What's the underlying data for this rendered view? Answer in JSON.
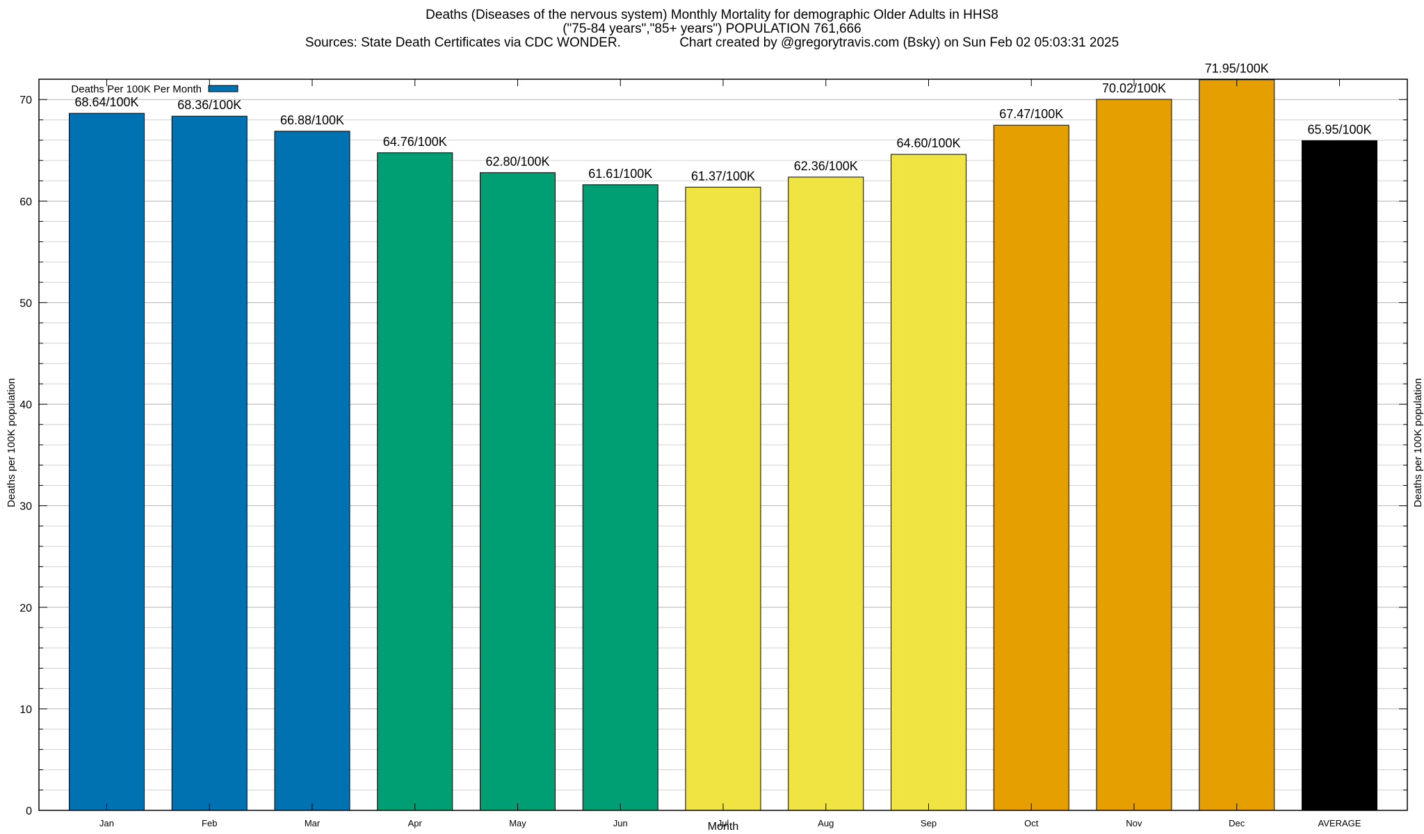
{
  "chart_data": {
    "type": "bar",
    "title_lines": [
      "Deaths (Diseases of the nervous system) Monthly Mortality for demographic Older Adults in HHS8",
      "(\"75-84 years\",\"85+ years\") POPULATION 761,666",
      "Sources: State Death Certificates via CDC WONDER.                Chart created by @gregorytravis.com (Bsky) on Sun Feb 02 05:03:31 2025"
    ],
    "xlabel": "Month",
    "ylabel": "Deaths per 100K population",
    "y2label": "Deaths per 100K population",
    "ylim": [
      0,
      72
    ],
    "yticks": [
      0,
      10,
      20,
      30,
      40,
      50,
      60,
      70
    ],
    "grid": true,
    "legend": {
      "label": "Deaths Per 100K Per Month",
      "color": "#0072b2",
      "placement": "top-left"
    },
    "categories": [
      "Jan",
      "Feb",
      "Mar",
      "Apr",
      "May",
      "Jun",
      "Jul",
      "Aug",
      "Sep",
      "Oct",
      "Nov",
      "Dec",
      "AVERAGE"
    ],
    "values": [
      68.64,
      68.36,
      66.88,
      64.76,
      62.8,
      61.61,
      61.37,
      62.36,
      64.6,
      67.47,
      70.02,
      71.95,
      65.95
    ],
    "value_labels": [
      "68.64/100K",
      "68.36/100K",
      "66.88/100K",
      "64.76/100K",
      "62.80/100K",
      "61.61/100K",
      "61.37/100K",
      "62.36/100K",
      "64.60/100K",
      "67.47/100K",
      "70.02/100K",
      "71.95/100K",
      "65.95/100K"
    ],
    "colors": [
      "#0072b2",
      "#0072b2",
      "#0072b2",
      "#009e73",
      "#009e73",
      "#009e73",
      "#f0e442",
      "#f0e442",
      "#f0e442",
      "#e69f00",
      "#e69f00",
      "#e69f00",
      "#000000"
    ]
  }
}
